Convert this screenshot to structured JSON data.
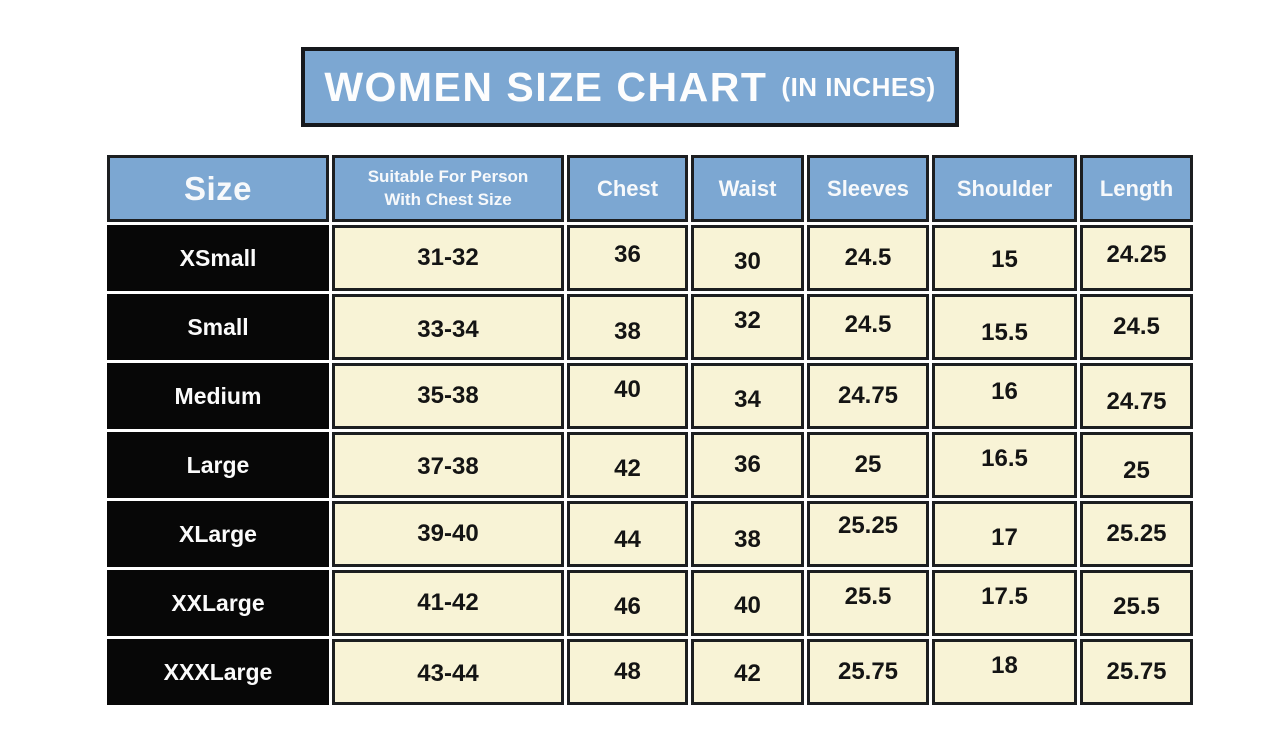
{
  "title": {
    "main": "WOMEN SIZE CHART",
    "suffix": "(IN INCHES)"
  },
  "colors": {
    "banner_blue": "#7ca7d2",
    "header_blue": "#7ca7d2",
    "cell_cream": "#f8f3d6",
    "size_column_black": "#070707",
    "border_dark": "#1c1e20",
    "text_white": "#fdfdfd",
    "text_dark": "#141414",
    "page_background": "#ffffff"
  },
  "chart_data": {
    "type": "table",
    "title": "WOMEN SIZE CHART (IN INCHES)",
    "units": "inches",
    "columns": [
      "Size",
      "Suitable For Person\nWith Chest Size",
      "Chest",
      "Waist",
      "Sleeves",
      "Shoulder",
      "Length"
    ],
    "rows": [
      [
        "XSmall",
        "31-32",
        "36",
        "30",
        "24.5",
        "15",
        "24.25"
      ],
      [
        "Small",
        "33-34",
        "38",
        "32",
        "24.5",
        "15.5",
        "24.5"
      ],
      [
        "Medium",
        "35-38",
        "40",
        "34",
        "24.75",
        "16",
        "24.75"
      ],
      [
        "Large",
        "37-38",
        "42",
        "36",
        "25",
        "16.5",
        "25"
      ],
      [
        "XLarge",
        "39-40",
        "44",
        "38",
        "25.25",
        "17",
        "25.25"
      ],
      [
        "XXLarge",
        "41-42",
        "46",
        "40",
        "25.5",
        "17.5",
        "25.5"
      ],
      [
        "XXXLarge",
        "43-44",
        "48",
        "42",
        "25.75",
        "18",
        "25.75"
      ]
    ]
  }
}
